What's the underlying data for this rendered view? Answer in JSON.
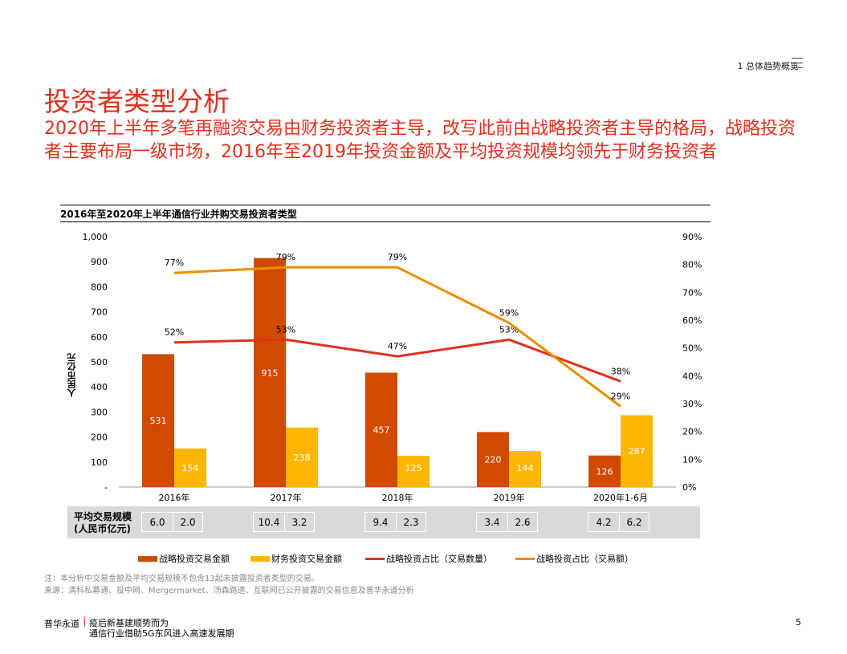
{
  "header": {
    "section": "1 总体趋势概览"
  },
  "title": "投资者类型分析",
  "subtitle": "2020年上半年多笔再融资交易由财务投资者主导，改写此前由战略投资者主导的格局，战略投资者主要布局一级市场，2016年至2019年投资金额及平均投资规模均领先于财务投资者",
  "chart_data": {
    "type": "bar",
    "title": "2016年至2020年上半年通信行业并购交易投资者类型",
    "ylabel": "人民币亿元",
    "categories": [
      "2016年",
      "2017年",
      "2018年",
      "2019年",
      "2020年1-6月"
    ],
    "ylim": [
      0,
      1000
    ],
    "y_ticks": [
      "-",
      "100",
      "200",
      "300",
      "400",
      "500",
      "600",
      "700",
      "800",
      "900",
      "1,000"
    ],
    "y2lim": [
      0,
      90
    ],
    "y2_ticks": [
      "0%",
      "10%",
      "20%",
      "30%",
      "40%",
      "50%",
      "60%",
      "70%",
      "80%",
      "90%"
    ],
    "series": [
      {
        "name": "战略投资交易金额",
        "kind": "bar",
        "axis": "left",
        "color": "#d04a02",
        "values": [
          531,
          915,
          457,
          220,
          126
        ],
        "labels": [
          "531",
          "915",
          "457",
          "220",
          "126"
        ]
      },
      {
        "name": "财务投资交易金额",
        "kind": "bar",
        "axis": "left",
        "color": "#ffb600",
        "values": [
          154,
          238,
          125,
          144,
          287
        ],
        "labels": [
          "154",
          "238",
          "125",
          "144",
          "287"
        ]
      },
      {
        "name": "战略投资占比（交易数量）",
        "kind": "line",
        "axis": "right",
        "color": "#e0301e",
        "values": [
          52,
          53,
          47,
          53,
          38
        ],
        "labels": [
          "52%",
          "53%",
          "47%",
          "53%",
          "38%"
        ]
      },
      {
        "name": "战略投资占比（交易额）",
        "kind": "line",
        "axis": "right",
        "color": "#eb8c00",
        "values": [
          77,
          79,
          79,
          59,
          29
        ],
        "labels": [
          "77%",
          "79%",
          "79%",
          "59%",
          "29%"
        ]
      }
    ],
    "avg_scale": {
      "label_line1": "平均交易规模",
      "label_line2": "(人民币亿元)",
      "strategic": [
        "6.0",
        "10.4",
        "9.4",
        "3.4",
        "4.2"
      ],
      "financial": [
        "2.0",
        "3.2",
        "2.3",
        "2.6",
        "6.2"
      ]
    },
    "legend_placement": "bottom"
  },
  "notes": {
    "note": "注：本分析中交易金额及平均交易规模不包含13起未披露投资者类型的交易。",
    "source": "来源：清科私募通、投中网、Mergermarket、汤森路透、互联网已公开披露的交易信息及普华永道分析"
  },
  "footer": {
    "brand": "普华永道",
    "line1": "疫后新基建顺势而为",
    "line2": "通信行业借助5G东风进入高速发展期",
    "page": "5"
  }
}
